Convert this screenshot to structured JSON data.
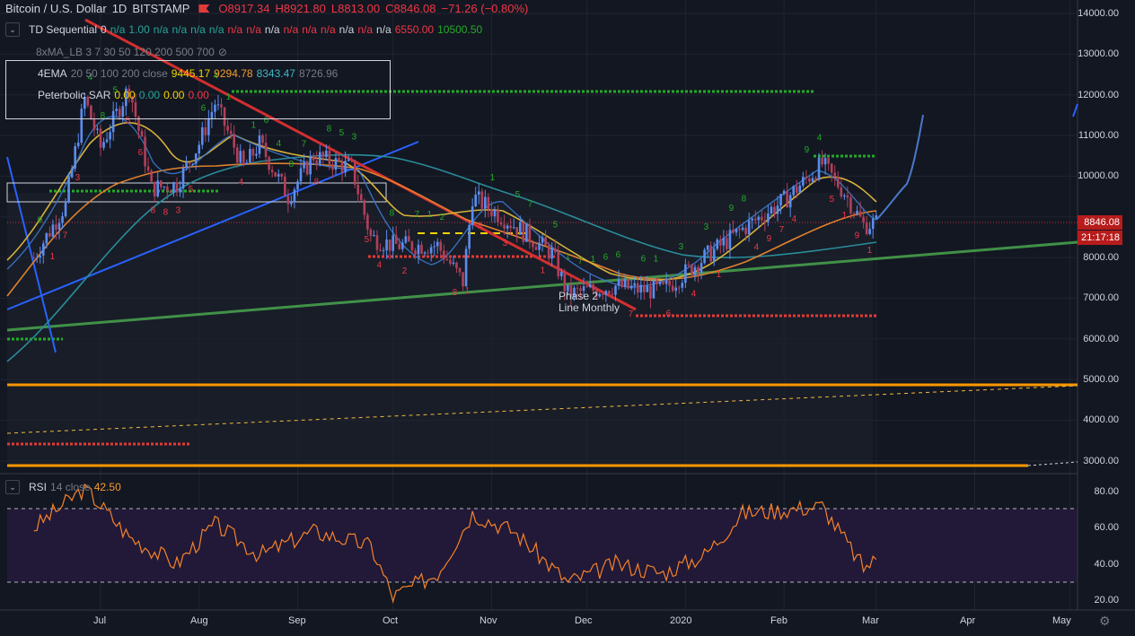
{
  "header": {
    "symbol": "Bitcoin / U.S. Dollar",
    "interval": "1D",
    "exchange": "BITSTAMP",
    "open": "O8917.34",
    "high": "H8921.80",
    "low": "L8813.00",
    "close": "C8846.08",
    "change": "−71.26 (−0.80%)"
  },
  "indicators": {
    "td": {
      "name": "TD Sequential",
      "p1": "0",
      "v1": "n/a",
      "v2": "1.00",
      "na": "n/a",
      "v3": "6550.00",
      "v4": "10500.50"
    },
    "xma": {
      "name": "8xMA_LB 3 7 30 50 120 200 500 700"
    },
    "ema": {
      "name": "4EMA",
      "params": "20 50 100 200 close",
      "v1": "9445.17",
      "v2": "9294.78",
      "v3": "8343.47",
      "v4": "8726.96"
    },
    "sar": {
      "name": "Peterbolic SAR",
      "v1": "0.00",
      "v2": "0.00",
      "v3": "0.00",
      "v4": "0.00"
    },
    "rsi": {
      "name": "RSI",
      "params": "14 close",
      "value": "42.50"
    }
  },
  "annotation": {
    "line1": "Phase 2",
    "line2": "Line Monthly"
  },
  "price_axis": {
    "ticks": [
      "14000.00",
      "13000.00",
      "12000.00",
      "11000.00",
      "10000.00",
      "9000.00",
      "8000.00",
      "7000.00",
      "6000.00",
      "5000.00",
      "4000.00",
      "3000.00"
    ],
    "last_price": "8846.08",
    "countdown": "21:17:18"
  },
  "rsi_axis": {
    "ticks": [
      "80.00",
      "60.00",
      "40.00",
      "20.00"
    ]
  },
  "time_axis": {
    "ticks": [
      "Jul",
      "Aug",
      "Sep",
      "Oct",
      "Nov",
      "Dec",
      "2020",
      "Feb",
      "Mar",
      "Apr",
      "May"
    ]
  },
  "colors": {
    "bg": "#131722",
    "up": "#5b8def",
    "down": "#b0405a",
    "ema20": "#d7b13a",
    "ema50": "#e0812e",
    "ema100": "#2a8c9a",
    "ema200": "#2e7d32",
    "rsi": "#f5822a",
    "trend_red": "#d32f2f",
    "support_orange": "#ff9800"
  },
  "chart_data": [
    {
      "type": "line",
      "title": "Bitcoin / U.S. Dollar, 1D, BITSTAMP",
      "x": [
        "2019-06-10",
        "2019-06-20",
        "2019-06-26",
        "2019-07-01",
        "2019-07-10",
        "2019-07-17",
        "2019-07-25",
        "2019-08-01",
        "2019-08-06",
        "2019-08-15",
        "2019-08-20",
        "2019-08-29",
        "2019-09-06",
        "2019-09-18",
        "2019-09-24",
        "2019-10-01",
        "2019-10-15",
        "2019-10-23",
        "2019-10-26",
        "2019-11-08",
        "2019-11-20",
        "2019-11-25",
        "2019-12-10",
        "2019-12-18",
        "2019-12-25",
        "2020-01-07",
        "2020-01-19",
        "2020-02-01",
        "2020-02-13",
        "2020-02-20",
        "2020-02-26",
        "2020-03-01"
      ],
      "series": [
        {
          "name": "close",
          "values": [
            8000,
            9300,
            11900,
            10700,
            12200,
            9700,
            9800,
            10800,
            11800,
            10200,
            10800,
            9500,
            10500,
            10200,
            8500,
            8300,
            8300,
            7400,
            9500,
            8800,
            8100,
            7100,
            7300,
            7200,
            7200,
            8000,
            8700,
            9400,
            10300,
            9600,
            8800,
            8850
          ]
        }
      ],
      "ylim": [
        2700,
        14200
      ],
      "last_price": 8846.08,
      "levels": {
        "td_support": 6550,
        "td_resistance": 10500.5
      }
    },
    {
      "type": "line",
      "title": "RSI 14 close",
      "x": [
        "2019-06-10",
        "2019-06-26",
        "2019-07-10",
        "2019-07-25",
        "2019-08-06",
        "2019-08-20",
        "2019-09-06",
        "2019-09-24",
        "2019-10-01",
        "2019-10-15",
        "2019-10-26",
        "2019-11-08",
        "2019-11-25",
        "2019-12-10",
        "2019-12-25",
        "2020-01-07",
        "2020-01-19",
        "2020-02-01",
        "2020-02-13",
        "2020-02-26",
        "2020-03-01"
      ],
      "series": [
        {
          "name": "RSI",
          "values": [
            60,
            82,
            55,
            40,
            62,
            45,
            58,
            50,
            22,
            35,
            68,
            58,
            30,
            40,
            35,
            45,
            68,
            70,
            72,
            38,
            42.5
          ]
        }
      ],
      "ylim": [
        15,
        85
      ],
      "bands": [
        30,
        70
      ]
    }
  ]
}
